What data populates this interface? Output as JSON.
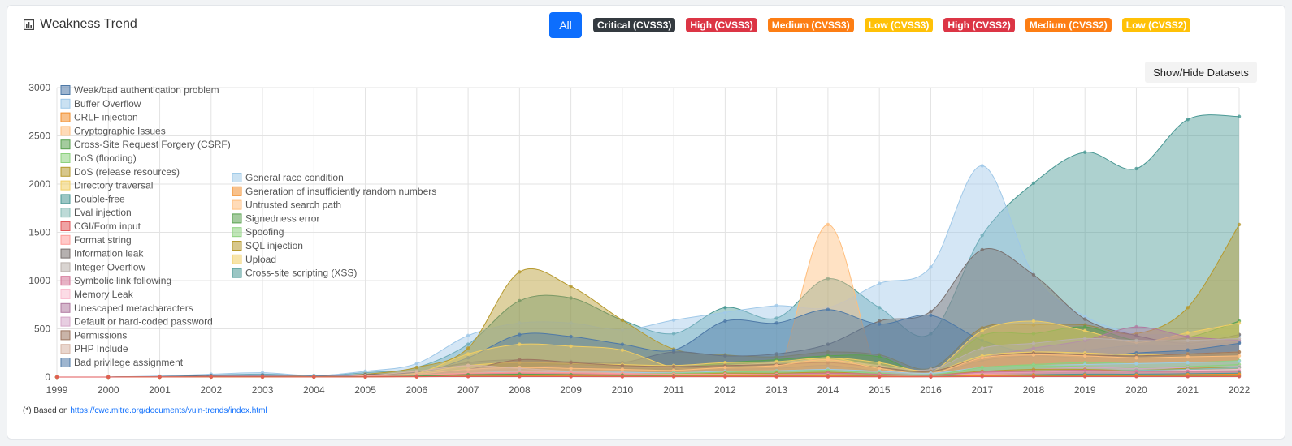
{
  "header": {
    "title": "Weakness Trend",
    "icon": "bar-chart-icon"
  },
  "filters": {
    "all_label": "All",
    "badges": [
      {
        "label": "Critical (CVSS3)",
        "color": "#343a40"
      },
      {
        "label": "High (CVSS3)",
        "color": "#dc3545"
      },
      {
        "label": "Medium (CVSS3)",
        "color": "#fd7e14"
      },
      {
        "label": "Low (CVSS3)",
        "color": "#ffc107"
      },
      {
        "label": "High (CVSS2)",
        "color": "#dc3545"
      },
      {
        "label": "Medium (CVSS2)",
        "color": "#fd7e14"
      },
      {
        "label": "Low (CVSS2)",
        "color": "#ffc107"
      }
    ]
  },
  "toggle": {
    "label": "Show/Hide Datasets"
  },
  "footer": {
    "prefix": "(*) Based on ",
    "link": "https://cwe.mitre.org/documents/vuln-trends/index.html"
  },
  "chart_data": {
    "type": "area",
    "x": [
      1999,
      2000,
      2001,
      2002,
      2003,
      2004,
      2005,
      2006,
      2007,
      2008,
      2009,
      2010,
      2011,
      2012,
      2013,
      2014,
      2015,
      2016,
      2017,
      2018,
      2019,
      2020,
      2021,
      2022
    ],
    "ylim": [
      0,
      3000
    ],
    "yticks": [
      0,
      500,
      1000,
      1500,
      2000,
      2500,
      3000
    ],
    "grid": true,
    "legend_position": "top-left, inside plot, two columns",
    "series": [
      {
        "name": "Weak/bad authentication problem",
        "color": "#4e79a7",
        "values": [
          0,
          0,
          3,
          8,
          12,
          6,
          15,
          25,
          60,
          80,
          90,
          50,
          60,
          80,
          90,
          120,
          60,
          30,
          170,
          220,
          200,
          250,
          280,
          350
        ]
      },
      {
        "name": "Buffer Overflow",
        "color": "#9fc8e8",
        "values": [
          0,
          0,
          10,
          30,
          45,
          15,
          60,
          140,
          430,
          560,
          560,
          490,
          590,
          670,
          740,
          720,
          970,
          1140,
          2190,
          1060,
          630,
          450,
          450,
          430
        ]
      },
      {
        "name": "CRLF injection",
        "color": "#f28e2b",
        "values": [
          0,
          0,
          0,
          1,
          2,
          1,
          3,
          5,
          10,
          12,
          10,
          8,
          6,
          8,
          8,
          6,
          5,
          4,
          15,
          20,
          20,
          18,
          25,
          30
        ]
      },
      {
        "name": "Cryptographic Issues",
        "color": "#ffbe7d",
        "values": [
          0,
          0,
          2,
          5,
          8,
          4,
          10,
          30,
          80,
          100,
          90,
          80,
          70,
          100,
          120,
          180,
          90,
          40,
          200,
          230,
          220,
          200,
          210,
          220
        ]
      },
      {
        "name": "Cross-Site Request Forgery (CSRF)",
        "color": "#59a14f",
        "values": [
          0,
          0,
          0,
          1,
          2,
          1,
          5,
          20,
          100,
          150,
          130,
          100,
          90,
          150,
          180,
          220,
          210,
          30,
          430,
          450,
          520,
          380,
          410,
          580
        ]
      },
      {
        "name": "DoS (flooding)",
        "color": "#8cd17d",
        "values": [
          0,
          0,
          1,
          3,
          5,
          3,
          8,
          15,
          40,
          50,
          40,
          35,
          40,
          50,
          60,
          70,
          40,
          20,
          100,
          120,
          110,
          100,
          110,
          130
        ]
      },
      {
        "name": "DoS (release resources)",
        "color": "#b6992d",
        "values": [
          0,
          0,
          0,
          2,
          3,
          1,
          5,
          10,
          30,
          40,
          35,
          30,
          30,
          40,
          40,
          50,
          30,
          20,
          60,
          80,
          80,
          70,
          90,
          100
        ]
      },
      {
        "name": "Directory traversal",
        "color": "#f1ce63",
        "values": [
          0,
          0,
          2,
          5,
          8,
          4,
          10,
          40,
          120,
          150,
          140,
          130,
          120,
          150,
          160,
          200,
          150,
          60,
          220,
          260,
          250,
          230,
          240,
          260
        ]
      },
      {
        "name": "Double-free",
        "color": "#499894",
        "values": [
          0,
          0,
          0,
          1,
          2,
          1,
          2,
          5,
          10,
          15,
          15,
          12,
          10,
          12,
          15,
          15,
          10,
          8,
          20,
          25,
          30,
          30,
          35,
          40
        ]
      },
      {
        "name": "Eval injection",
        "color": "#86bcb6",
        "values": [
          0,
          0,
          0,
          1,
          1,
          1,
          2,
          5,
          15,
          20,
          15,
          10,
          10,
          15,
          15,
          20,
          15,
          10,
          40,
          50,
          60,
          70,
          80,
          100
        ]
      },
      {
        "name": "CGI/Form input",
        "color": "#e15759",
        "values": [
          0,
          0,
          1,
          2,
          2,
          1,
          2,
          3,
          5,
          5,
          4,
          3,
          3,
          3,
          3,
          3,
          2,
          2,
          5,
          5,
          5,
          5,
          5,
          5
        ]
      },
      {
        "name": "Format string",
        "color": "#ff9d9a",
        "values": [
          0,
          0,
          2,
          5,
          8,
          4,
          10,
          20,
          40,
          50,
          45,
          35,
          30,
          30,
          25,
          25,
          20,
          10,
          30,
          30,
          25,
          20,
          20,
          20
        ]
      },
      {
        "name": "Information leak",
        "color": "#79706e",
        "values": [
          0,
          0,
          5,
          15,
          20,
          10,
          25,
          50,
          150,
          180,
          160,
          150,
          260,
          220,
          240,
          340,
          580,
          680,
          1320,
          1060,
          600,
          430,
          350,
          440
        ]
      },
      {
        "name": "Integer Overflow",
        "color": "#bab0ac",
        "values": [
          0,
          0,
          1,
          3,
          5,
          3,
          8,
          20,
          80,
          100,
          120,
          100,
          100,
          120,
          150,
          180,
          120,
          80,
          300,
          350,
          400,
          380,
          380,
          400
        ]
      },
      {
        "name": "Symbolic link following",
        "color": "#d37295",
        "values": [
          0,
          0,
          2,
          5,
          6,
          3,
          8,
          15,
          30,
          40,
          35,
          30,
          25,
          30,
          30,
          40,
          30,
          20,
          50,
          60,
          70,
          60,
          60,
          60
        ]
      },
      {
        "name": "Memory Leak",
        "color": "#fabfd2",
        "values": [
          0,
          0,
          0,
          1,
          2,
          1,
          3,
          5,
          10,
          15,
          15,
          12,
          12,
          15,
          15,
          20,
          15,
          10,
          40,
          50,
          60,
          60,
          70,
          80
        ]
      },
      {
        "name": "Unescaped metacharacters",
        "color": "#b07aa1",
        "values": [
          0,
          0,
          1,
          2,
          3,
          2,
          4,
          10,
          20,
          30,
          25,
          20,
          20,
          30,
          30,
          40,
          30,
          20,
          200,
          300,
          380,
          520,
          420,
          380
        ]
      },
      {
        "name": "Default or hard-coded password",
        "color": "#d4a6c8",
        "values": [
          0,
          0,
          0,
          1,
          2,
          1,
          2,
          5,
          10,
          15,
          15,
          12,
          12,
          15,
          20,
          25,
          20,
          15,
          60,
          80,
          100,
          90,
          100,
          110
        ]
      },
      {
        "name": "Permissions",
        "color": "#9d7660",
        "values": [
          0,
          0,
          2,
          5,
          8,
          4,
          10,
          30,
          80,
          180,
          150,
          120,
          110,
          120,
          130,
          150,
          100,
          60,
          200,
          250,
          230,
          220,
          240,
          260
        ]
      },
      {
        "name": "PHP Include",
        "color": "#d7b5a6",
        "values": [
          0,
          0,
          0,
          2,
          5,
          3,
          15,
          60,
          120,
          90,
          60,
          40,
          25,
          20,
          15,
          12,
          8,
          5,
          20,
          15,
          15,
          10,
          10,
          10
        ]
      },
      {
        "name": "Bad privilege assignment",
        "color": "#4e79a7",
        "values": [
          0,
          0,
          3,
          10,
          15,
          8,
          20,
          40,
          200,
          440,
          420,
          340,
          280,
          580,
          560,
          700,
          550,
          640,
          380,
          250,
          280,
          330,
          330,
          360
        ]
      },
      {
        "name": "General race condition",
        "color": "#a0cbe8",
        "values": [
          0,
          0,
          1,
          3,
          5,
          3,
          8,
          15,
          40,
          60,
          55,
          50,
          45,
          60,
          65,
          80,
          60,
          40,
          100,
          120,
          130,
          140,
          150,
          160
        ]
      },
      {
        "name": "Generation of insufficiently random numbers",
        "color": "#f28e2b",
        "values": [
          0,
          0,
          0,
          1,
          1,
          1,
          2,
          3,
          8,
          10,
          10,
          8,
          8,
          10,
          10,
          12,
          8,
          5,
          15,
          20,
          20,
          18,
          20,
          25
        ]
      },
      {
        "name": "Untrusted search path",
        "color": "#ffbe7d",
        "values": [
          0,
          0,
          0,
          1,
          2,
          1,
          3,
          8,
          20,
          30,
          25,
          20,
          20,
          25,
          30,
          1580,
          40,
          20,
          40,
          50,
          45,
          40,
          40,
          50
        ]
      },
      {
        "name": "Signedness error",
        "color": "#59a14f",
        "values": [
          0,
          0,
          1,
          2,
          3,
          2,
          4,
          10,
          25,
          30,
          25,
          20,
          15,
          15,
          15,
          15,
          10,
          5,
          15,
          15,
          10,
          10,
          10,
          10
        ]
      },
      {
        "name": "Spoofing",
        "color": "#8cd17d",
        "values": [
          0,
          0,
          1,
          2,
          3,
          2,
          4,
          10,
          30,
          40,
          35,
          30,
          30,
          40,
          45,
          60,
          40,
          30,
          100,
          130,
          150,
          140,
          150,
          170
        ]
      },
      {
        "name": "SQL injection",
        "color": "#b6992d",
        "values": [
          0,
          0,
          2,
          8,
          15,
          8,
          30,
          100,
          300,
          1090,
          940,
          590,
          290,
          230,
          210,
          260,
          230,
          90,
          510,
          540,
          540,
          450,
          720,
          1580
        ]
      },
      {
        "name": "Upload",
        "color": "#f1ce63",
        "values": [
          0,
          0,
          0,
          2,
          4,
          2,
          8,
          40,
          240,
          340,
          320,
          280,
          100,
          100,
          120,
          200,
          100,
          50,
          480,
          580,
          480,
          360,
          460,
          560
        ]
      },
      {
        "name": "Cross-site scripting (XSS)",
        "color": "#499894",
        "values": [
          0,
          0,
          5,
          20,
          30,
          15,
          45,
          100,
          340,
          790,
          820,
          590,
          450,
          720,
          610,
          1020,
          720,
          450,
          1470,
          2010,
          2330,
          2160,
          2670,
          2700
        ]
      }
    ]
  }
}
